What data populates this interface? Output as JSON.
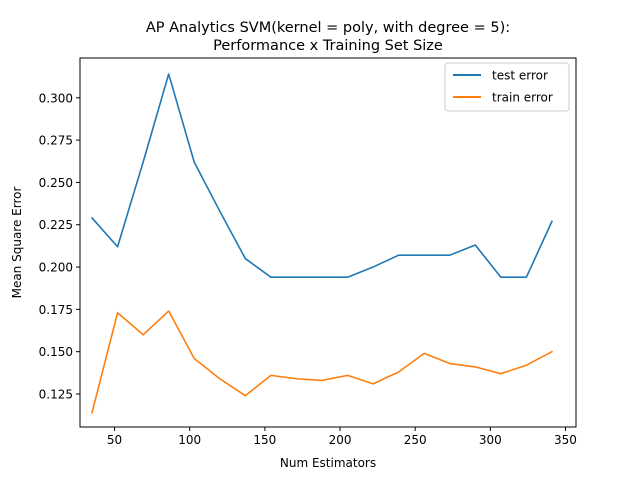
{
  "chart_data": {
    "type": "line",
    "title_line1": "AP Analytics SVM(kernel = poly, with degree = 5):",
    "title_line2": "Performance x Training Set Size",
    "xlabel": "Num Estimators",
    "ylabel": "Mean Square Error",
    "xlim": [
      27,
      357
    ],
    "ylim": [
      0.1055,
      0.3235
    ],
    "xticks": [
      50,
      100,
      150,
      200,
      250,
      300,
      350
    ],
    "yticks": [
      0.125,
      0.15,
      0.175,
      0.2,
      0.225,
      0.25,
      0.275,
      0.3
    ],
    "ytick_labels": [
      "0.125",
      "0.150",
      "0.175",
      "0.200",
      "0.225",
      "0.250",
      "0.275",
      "0.300"
    ],
    "grid": false,
    "legend_position": "top-right",
    "x": [
      35,
      52,
      69,
      86,
      103,
      120,
      137,
      154,
      171,
      188,
      205,
      222,
      239,
      256,
      273,
      290,
      307,
      324,
      341
    ],
    "series": [
      {
        "name": "test error",
        "color": "#1f77b4",
        "values": [
          0.229,
          0.212,
          0.262,
          0.314,
          0.262,
          0.233,
          0.205,
          0.194,
          0.194,
          0.194,
          0.194,
          0.2,
          0.207,
          0.207,
          0.207,
          0.213,
          0.194,
          0.194,
          0.227
        ]
      },
      {
        "name": "train error",
        "color": "#ff7f0e",
        "values": [
          0.114,
          0.173,
          0.16,
          0.174,
          0.146,
          0.134,
          0.124,
          0.136,
          0.134,
          0.133,
          0.136,
          0.131,
          0.138,
          0.149,
          0.143,
          0.141,
          0.137,
          0.142,
          0.15
        ]
      }
    ]
  }
}
